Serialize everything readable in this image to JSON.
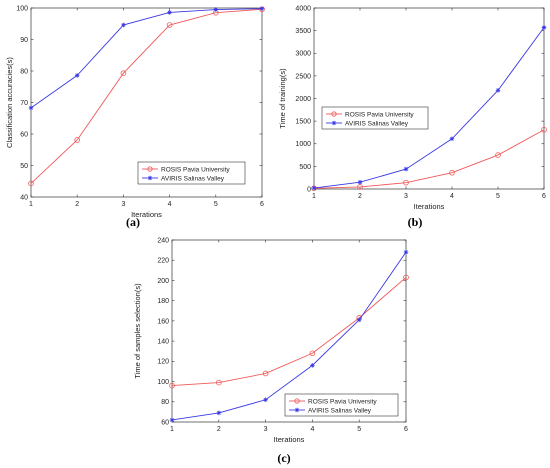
{
  "chart_data": [
    {
      "id": "a",
      "type": "line",
      "panel_label": "(a)",
      "xlabel": "Iterations",
      "ylabel": "Classification accuracies(s)",
      "x": [
        1,
        2,
        3,
        4,
        5,
        6
      ],
      "xlim": [
        1,
        6
      ],
      "ylim": [
        40,
        100
      ],
      "xticks": [
        1,
        2,
        3,
        4,
        5,
        6
      ],
      "yticks": [
        40,
        50,
        60,
        70,
        80,
        90,
        100
      ],
      "legend_position": "bottom-right",
      "grid": false,
      "series": [
        {
          "name": "ROSIS Pavia University",
          "marker": "circle",
          "color": "#f05a5a",
          "values": [
            44.3,
            58.1,
            79.3,
            94.6,
            98.5,
            99.6
          ]
        },
        {
          "name": "AVIRIS Salinas Valley",
          "marker": "star",
          "color": "#3a3ae6",
          "values": [
            68.3,
            78.6,
            94.6,
            98.6,
            99.5,
            99.8
          ]
        }
      ]
    },
    {
      "id": "b",
      "type": "line",
      "panel_label": "(b)",
      "xlabel": "Iterations",
      "ylabel": "Time of training(s)",
      "x": [
        1,
        2,
        3,
        4,
        5,
        6
      ],
      "xlim": [
        1,
        6
      ],
      "ylim": [
        0,
        4000
      ],
      "xticks": [
        1,
        2,
        3,
        4,
        5,
        6
      ],
      "yticks": [
        0,
        500,
        1000,
        1500,
        2000,
        2500,
        3000,
        3500,
        4000
      ],
      "legend_position": "middle-left",
      "grid": false,
      "series": [
        {
          "name": "ROSIS Pavia University",
          "marker": "circle",
          "color": "#f05a5a",
          "values": [
            15,
            45,
            140,
            360,
            750,
            1310
          ]
        },
        {
          "name": "AVIRIS Salinas Valley",
          "marker": "star",
          "color": "#3a3ae6",
          "values": [
            20,
            150,
            440,
            1110,
            2180,
            3570
          ]
        }
      ]
    },
    {
      "id": "c",
      "type": "line",
      "panel_label": "(c)",
      "xlabel": "Iterations",
      "ylabel": "Time of samples selection(s)",
      "x": [
        1,
        2,
        3,
        4,
        5,
        6
      ],
      "xlim": [
        1,
        6
      ],
      "ylim": [
        60,
        240
      ],
      "xticks": [
        1,
        2,
        3,
        4,
        5,
        6
      ],
      "yticks": [
        60,
        80,
        100,
        120,
        140,
        160,
        180,
        200,
        220,
        240
      ],
      "legend_position": "bottom-right",
      "grid": false,
      "series": [
        {
          "name": "ROSIS Pavia University",
          "marker": "circle",
          "color": "#f05a5a",
          "values": [
            96,
            99,
            108,
            128,
            163,
            203
          ]
        },
        {
          "name": "AVIRIS Salinas Valley",
          "marker": "star",
          "color": "#3a3ae6",
          "values": [
            62,
            69,
            82,
            116,
            161,
            228
          ]
        }
      ]
    }
  ]
}
